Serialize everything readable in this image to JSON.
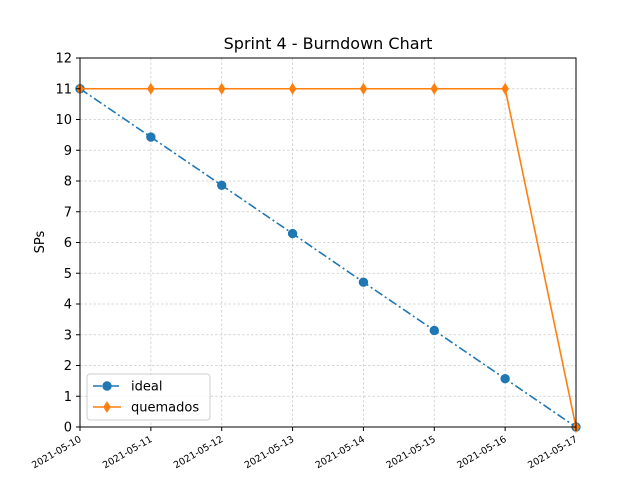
{
  "chart_data": {
    "type": "line",
    "title": "Sprint 4 - Burndown Chart",
    "xlabel": "",
    "ylabel": "SPs",
    "categories": [
      "2021-05-10",
      "2021-05-11",
      "2021-05-12",
      "2021-05-13",
      "2021-05-14",
      "2021-05-15",
      "2021-05-16",
      "2021-05-17"
    ],
    "ylim": [
      0,
      12
    ],
    "yticks": [
      "0",
      "1",
      "2",
      "3",
      "4",
      "5",
      "6",
      "7",
      "8",
      "9",
      "10",
      "11",
      "12"
    ],
    "grid": true,
    "legend_position": "bottom-left",
    "series": [
      {
        "name": "ideal",
        "color": "#1f77b4",
        "line_style": "dash-dot",
        "marker": "circle",
        "values": [
          11,
          9.43,
          7.86,
          6.29,
          4.71,
          3.14,
          1.57,
          0
        ]
      },
      {
        "name": "quemados",
        "color": "#ff7f0e",
        "line_style": "solid",
        "marker": "diamond",
        "values": [
          11,
          11,
          11,
          11,
          11,
          11,
          11,
          0
        ]
      }
    ]
  }
}
